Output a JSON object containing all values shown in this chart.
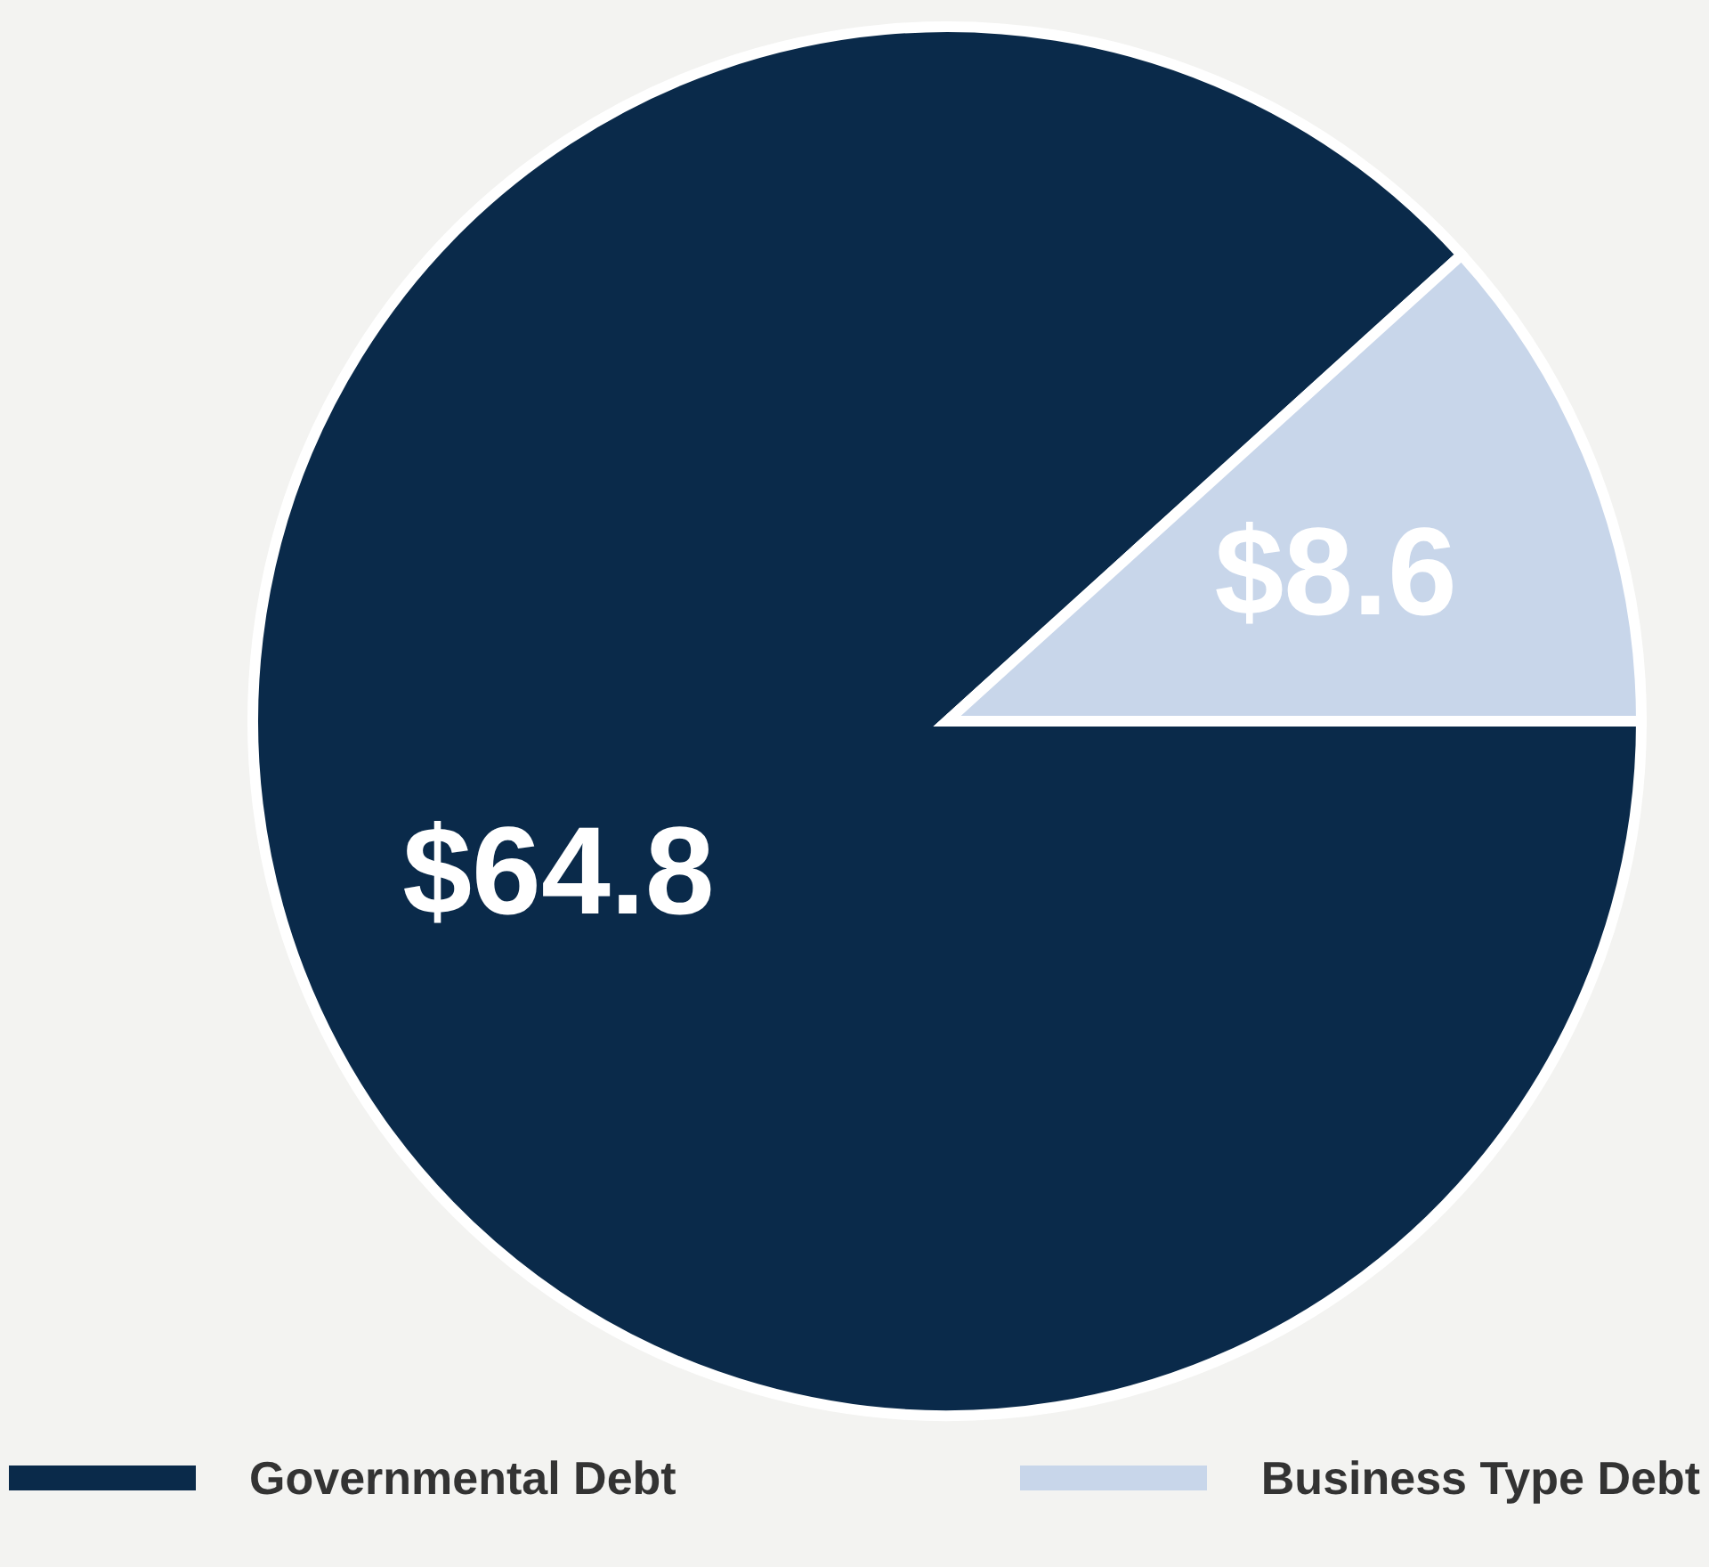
{
  "chart_data": {
    "type": "pie",
    "categories": [
      "Governmental Debt",
      "Business Type Debt"
    ],
    "values": [
      64.8,
      8.6
    ],
    "colors": [
      "#0a2a4a",
      "#c8d6ea"
    ],
    "value_labels": [
      "$64.8",
      "$8.6"
    ],
    "legend": "bottom"
  }
}
